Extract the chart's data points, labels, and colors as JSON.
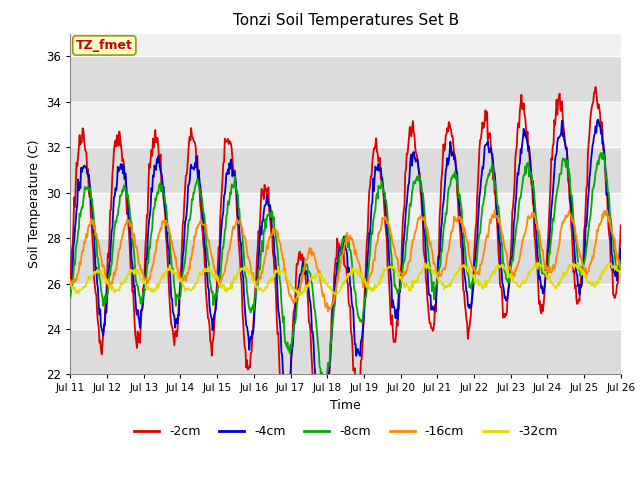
{
  "title": "Tonzi Soil Temperatures Set B",
  "xlabel": "Time",
  "ylabel": "Soil Temperature (C)",
  "ylim": [
    22,
    37
  ],
  "xlim": [
    0,
    360
  ],
  "annotation_text": "TZ_fmet",
  "annotation_bg": "#ffffcc",
  "annotation_border": "#999900",
  "annotation_text_color": "#cc0000",
  "fig_bg": "#ffffff",
  "plot_bg_light": "#f0f0f0",
  "plot_bg_dark": "#e0e0e0",
  "grid_color": "#ffffff",
  "series": {
    "-2cm": {
      "color": "#dd0000",
      "lw": 1.3
    },
    "-4cm": {
      "color": "#0000cc",
      "lw": 1.3
    },
    "-8cm": {
      "color": "#00aa00",
      "lw": 1.3
    },
    "-16cm": {
      "color": "#ff8800",
      "lw": 1.3
    },
    "-32cm": {
      "color": "#dddd00",
      "lw": 1.3
    }
  },
  "xtick_labels": [
    "Jul 11",
    "Jul 12",
    "Jul 13",
    "Jul 14",
    "Jul 15",
    "Jul 16",
    "Jul 17",
    "Jul 18",
    "Jul 19",
    "Jul 20",
    "Jul 21",
    "Jul 22",
    "Jul 23",
    "Jul 24",
    "Jul 25",
    "Jul 26"
  ],
  "xtick_positions": [
    0,
    24,
    48,
    72,
    96,
    120,
    144,
    168,
    192,
    216,
    240,
    264,
    288,
    312,
    336,
    360
  ],
  "ytick_positions": [
    22,
    24,
    26,
    28,
    30,
    32,
    34,
    36
  ],
  "band_pairs": [
    [
      22,
      24
    ],
    [
      26,
      28
    ],
    [
      30,
      32
    ],
    [
      34,
      36
    ]
  ],
  "band_color": "#dcdcdc"
}
